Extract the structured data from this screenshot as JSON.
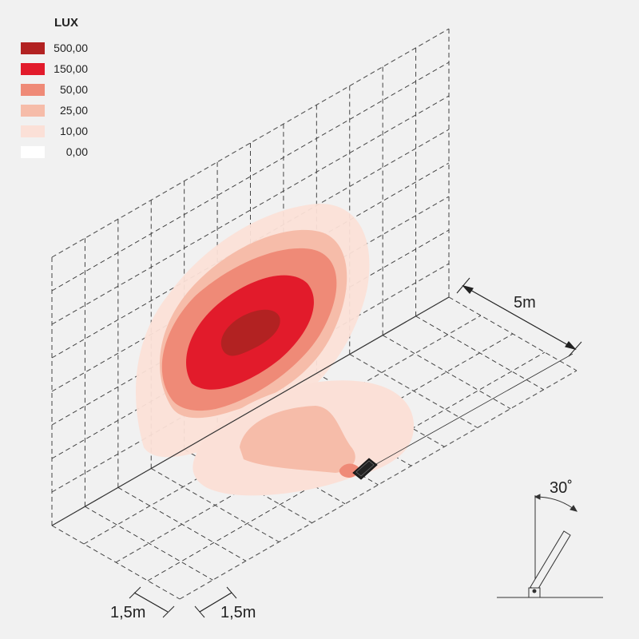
{
  "legend": {
    "title": "LUX",
    "items": [
      {
        "label": "500,00",
        "color": "#b22222"
      },
      {
        "label": "150,00",
        "color": "#e21b2b"
      },
      {
        "label": "50,00",
        "color": "#ef8a77"
      },
      {
        "label": "25,00",
        "color": "#f6bca9"
      },
      {
        "label": "10,00",
        "color": "#fbe0d7"
      },
      {
        "label": "0,00",
        "color": "#ffffff"
      }
    ]
  },
  "dimensions": {
    "height": "5m",
    "grid_x": "1,5m",
    "grid_y": "1,5m",
    "tilt_angle": "30˚"
  }
}
